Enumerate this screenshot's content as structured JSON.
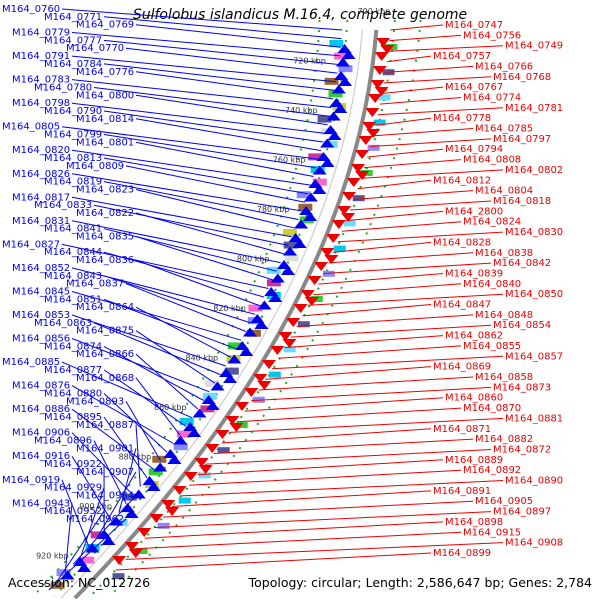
{
  "title": "Sulfolobus islandicus M.16.4, complete genome",
  "footer": {
    "accession": "Accession: NC_012726",
    "summary": "Topology: circular; Length: 2,586,647 bp; Genes: 2,784"
  },
  "colors": {
    "forward": "#0000ee",
    "reverse": "#ee0000",
    "ruler": "#888888",
    "tick": "#22aa22"
  },
  "ruler_labels": [
    "700 kbp",
    "720 kbp",
    "740 kbp",
    "760 kbp",
    "780 kbp",
    "800 kbp",
    "820 kbp",
    "840 kbp",
    "860 kbp",
    "880 kbp",
    "900 kbp",
    "920 kbp"
  ],
  "left_labels": [
    "M164_0760",
    "M164_0771",
    "M164_0769",
    "M164_0779",
    "M164_0777",
    "M164_0770",
    "M164_0791",
    "M164_0784",
    "M164_0776",
    "M164_0783",
    "M164_0780",
    "M164_0800",
    "M164_0798",
    "M164_0790",
    "M164_0814",
    "M164_0805",
    "M164_0799",
    "M164_0801",
    "M164_0820",
    "M164_0813",
    "M164_0809",
    "M164_0826",
    "M164_0819",
    "M164_0823",
    "M164_0817",
    "M164_0833",
    "M164_0822",
    "M164_0831",
    "M164_0841",
    "M164_0835",
    "M164_0827",
    "M164_0844",
    "M164_0836",
    "M164_0852",
    "M164_0843",
    "M164_0837",
    "M164_0845",
    "M164_0851",
    "M164_0864",
    "M164_0853",
    "M164_0863",
    "M164_0875",
    "M164_0856",
    "M164_0874",
    "M164_0866",
    "M164_0885",
    "M164_0877",
    "M164_0868",
    "M164_0876",
    "M164_0880",
    "M164_0893",
    "M164_0886",
    "M164_0895",
    "M164_0887",
    "M164_0906",
    "M164_0896",
    "M164_0901",
    "M164_0916",
    "M164_0922",
    "M164_0907",
    "M164_0919",
    "M164_0929",
    "M164_0934",
    "M164_0943",
    "M164_0952",
    "M164_0962"
  ],
  "right_labels": [
    "M164_0747",
    "M164_0756",
    "M164_0749",
    "M164_0757",
    "M164_0766",
    "M164_0768",
    "M164_0767",
    "M164_0774",
    "M164_0781",
    "M164_0778",
    "M164_0785",
    "M164_0797",
    "M164_0794",
    "M164_0808",
    "M164_0802",
    "M164_0812",
    "M164_0804",
    "M164_0818",
    "M164_2800",
    "M164_0824",
    "M164_0830",
    "M164_0828",
    "M164_0838",
    "M164_0842",
    "M164_0839",
    "M164_0840",
    "M164_0850",
    "M164_0847",
    "M164_0848",
    "M164_0854",
    "M164_0862",
    "M164_0855",
    "M164_0857",
    "M164_0869",
    "M164_0858",
    "M164_0873",
    "M164_0860",
    "M164_0870",
    "M164_0881",
    "M164_0871",
    "M164_0882",
    "M164_0872",
    "M164_0889",
    "M164_0892",
    "M164_0890",
    "M164_0891",
    "M164_0905",
    "M164_0897",
    "M164_0898",
    "M164_0915",
    "M164_0908",
    "M164_0899"
  ]
}
